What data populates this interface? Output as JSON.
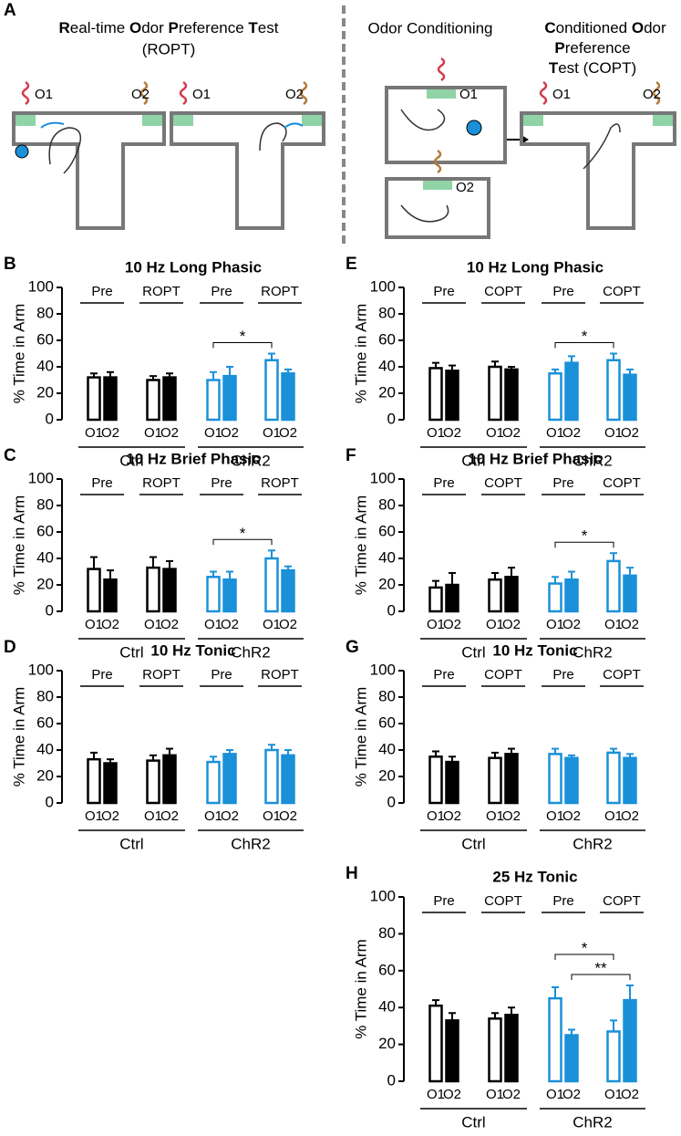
{
  "diagram": {
    "panel": "A",
    "ropt_title": [
      "R",
      "eal-time ",
      "O",
      "dor ",
      "P",
      "reference ",
      "T",
      "est"
    ],
    "ropt_abbr": "(ROPT)",
    "odor_labels": [
      "O1",
      "O2"
    ],
    "conditioning_title": "Odor Conditioning",
    "copt_title": [
      [
        "C",
        "onditioned ",
        "O",
        "dor"
      ],
      [
        "P",
        "reference"
      ],
      [
        "T",
        "est (COPT)"
      ]
    ]
  },
  "chart_data": [
    {
      "type": "bar",
      "panel": "B",
      "title": "10 Hz Long Phasic",
      "ylabel": "% Time in Arm",
      "ylim": [
        0,
        100
      ],
      "yticks": [
        0,
        20,
        40,
        60,
        80,
        100
      ],
      "categories": [
        "O1",
        "O2",
        "O1",
        "O2",
        "O1",
        "O2",
        "O1",
        "O2"
      ],
      "phases": [
        "Pre",
        "ROPT",
        "Pre",
        "ROPT"
      ],
      "groups": [
        "Ctrl",
        "ChR2"
      ],
      "values": [
        32,
        32,
        30,
        32,
        30,
        33,
        45,
        35
      ],
      "errors": [
        3,
        4,
        3,
        3,
        6,
        7,
        5,
        3
      ],
      "colors": [
        "#000000",
        "#000000",
        "#000000",
        "#000000",
        "#1a90d9",
        "#1a90d9",
        "#1a90d9",
        "#1a90d9"
      ],
      "filled": [
        false,
        true,
        false,
        true,
        false,
        true,
        false,
        true
      ],
      "significance": [
        {
          "label": "*",
          "bars": [
            4,
            6
          ]
        }
      ]
    },
    {
      "type": "bar",
      "panel": "C",
      "title": "10 Hz Brief Phasic",
      "ylabel": "% Time in Arm",
      "ylim": [
        0,
        100
      ],
      "yticks": [
        0,
        20,
        40,
        60,
        80,
        100
      ],
      "categories": [
        "O1",
        "O2",
        "O1",
        "O2",
        "O1",
        "O2",
        "O1",
        "O2"
      ],
      "phases": [
        "Pre",
        "ROPT",
        "Pre",
        "ROPT"
      ],
      "groups": [
        "Ctrl",
        "ChR2"
      ],
      "values": [
        32,
        24,
        33,
        32,
        26,
        24,
        40,
        31
      ],
      "errors": [
        9,
        7,
        8,
        6,
        4,
        6,
        6,
        3
      ],
      "colors": [
        "#000000",
        "#000000",
        "#000000",
        "#000000",
        "#1a90d9",
        "#1a90d9",
        "#1a90d9",
        "#1a90d9"
      ],
      "filled": [
        false,
        true,
        false,
        true,
        false,
        true,
        false,
        true
      ],
      "significance": [
        {
          "label": "*",
          "bars": [
            4,
            6
          ]
        }
      ]
    },
    {
      "type": "bar",
      "panel": "D",
      "title": "10 Hz Tonic",
      "ylabel": "% Time in Arm",
      "ylim": [
        0,
        100
      ],
      "yticks": [
        0,
        20,
        40,
        60,
        80,
        100
      ],
      "categories": [
        "O1",
        "O2",
        "O1",
        "O2",
        "O1",
        "O2",
        "O1",
        "O2"
      ],
      "phases": [
        "Pre",
        "ROPT",
        "Pre",
        "ROPT"
      ],
      "groups": [
        "Ctrl",
        "ChR2"
      ],
      "values": [
        33,
        30,
        32,
        36,
        31,
        37,
        40,
        36
      ],
      "errors": [
        5,
        3,
        4,
        5,
        4,
        3,
        4,
        4
      ],
      "colors": [
        "#000000",
        "#000000",
        "#000000",
        "#000000",
        "#1a90d9",
        "#1a90d9",
        "#1a90d9",
        "#1a90d9"
      ],
      "filled": [
        false,
        true,
        false,
        true,
        false,
        true,
        false,
        true
      ],
      "significance": []
    },
    {
      "type": "bar",
      "panel": "E",
      "title": "10 Hz Long Phasic",
      "ylabel": "% Time in Arm",
      "ylim": [
        0,
        100
      ],
      "yticks": [
        0,
        20,
        40,
        60,
        80,
        100
      ],
      "categories": [
        "O1",
        "O2",
        "O1",
        "O2",
        "O1",
        "O2",
        "O1",
        "O2"
      ],
      "phases": [
        "Pre",
        "COPT",
        "Pre",
        "COPT"
      ],
      "groups": [
        "Ctrl",
        "ChR2"
      ],
      "values": [
        39,
        37,
        40,
        38,
        35,
        43,
        45,
        34
      ],
      "errors": [
        4,
        4,
        4,
        2,
        3,
        5,
        5,
        4
      ],
      "colors": [
        "#000000",
        "#000000",
        "#000000",
        "#000000",
        "#1a90d9",
        "#1a90d9",
        "#1a90d9",
        "#1a90d9"
      ],
      "filled": [
        false,
        true,
        false,
        true,
        false,
        true,
        false,
        true
      ],
      "significance": [
        {
          "label": "*",
          "bars": [
            4,
            6
          ]
        }
      ]
    },
    {
      "type": "bar",
      "panel": "F",
      "title": "10 Hz Brief Phasic",
      "ylabel": "% Time in Arm",
      "ylim": [
        0,
        100
      ],
      "yticks": [
        0,
        20,
        40,
        60,
        80,
        100
      ],
      "categories": [
        "O1",
        "O2",
        "O1",
        "O2",
        "O1",
        "O2",
        "O1",
        "O2"
      ],
      "phases": [
        "Pre",
        "COPT",
        "Pre",
        "COPT"
      ],
      "groups": [
        "Ctrl",
        "ChR2"
      ],
      "values": [
        18,
        20,
        24,
        26,
        21,
        24,
        38,
        27
      ],
      "errors": [
        5,
        9,
        5,
        7,
        5,
        6,
        6,
        6
      ],
      "colors": [
        "#000000",
        "#000000",
        "#000000",
        "#000000",
        "#1a90d9",
        "#1a90d9",
        "#1a90d9",
        "#1a90d9"
      ],
      "filled": [
        false,
        true,
        false,
        true,
        false,
        true,
        false,
        true
      ],
      "significance": [
        {
          "label": "*",
          "bars": [
            4,
            6
          ]
        }
      ]
    },
    {
      "type": "bar",
      "panel": "G",
      "title": "10 Hz Tonic",
      "ylabel": "% Time in Arm",
      "ylim": [
        0,
        100
      ],
      "yticks": [
        0,
        20,
        40,
        60,
        80,
        100
      ],
      "categories": [
        "O1",
        "O2",
        "O1",
        "O2",
        "O1",
        "O2",
        "O1",
        "O2"
      ],
      "phases": [
        "Pre",
        "COPT",
        "Pre",
        "COPT"
      ],
      "groups": [
        "Ctrl",
        "ChR2"
      ],
      "values": [
        35,
        31,
        34,
        37,
        37,
        34,
        38,
        34
      ],
      "errors": [
        4,
        4,
        4,
        4,
        4,
        2,
        3,
        3
      ],
      "colors": [
        "#000000",
        "#000000",
        "#000000",
        "#000000",
        "#1a90d9",
        "#1a90d9",
        "#1a90d9",
        "#1a90d9"
      ],
      "filled": [
        false,
        true,
        false,
        true,
        false,
        true,
        false,
        true
      ],
      "significance": []
    },
    {
      "type": "bar",
      "panel": "H",
      "title": "25 Hz Tonic",
      "ylabel": "% Time in Arm",
      "ylim": [
        0,
        100
      ],
      "yticks": [
        0,
        20,
        40,
        60,
        80,
        100
      ],
      "categories": [
        "O1",
        "O2",
        "O1",
        "O2",
        "O1",
        "O2",
        "O1",
        "O2"
      ],
      "phases": [
        "Pre",
        "COPT",
        "Pre",
        "COPT"
      ],
      "groups": [
        "Ctrl",
        "ChR2"
      ],
      "values": [
        41,
        33,
        34,
        36,
        45,
        25,
        27,
        44
      ],
      "errors": [
        3,
        4,
        3,
        4,
        6,
        3,
        6,
        8
      ],
      "colors": [
        "#000000",
        "#000000",
        "#000000",
        "#000000",
        "#1a90d9",
        "#1a90d9",
        "#1a90d9",
        "#1a90d9"
      ],
      "filled": [
        false,
        true,
        false,
        true,
        false,
        true,
        false,
        true
      ],
      "significance": [
        {
          "label": "*",
          "bars": [
            4,
            6
          ]
        },
        {
          "label": "**",
          "bars": [
            5,
            7
          ]
        }
      ]
    }
  ]
}
